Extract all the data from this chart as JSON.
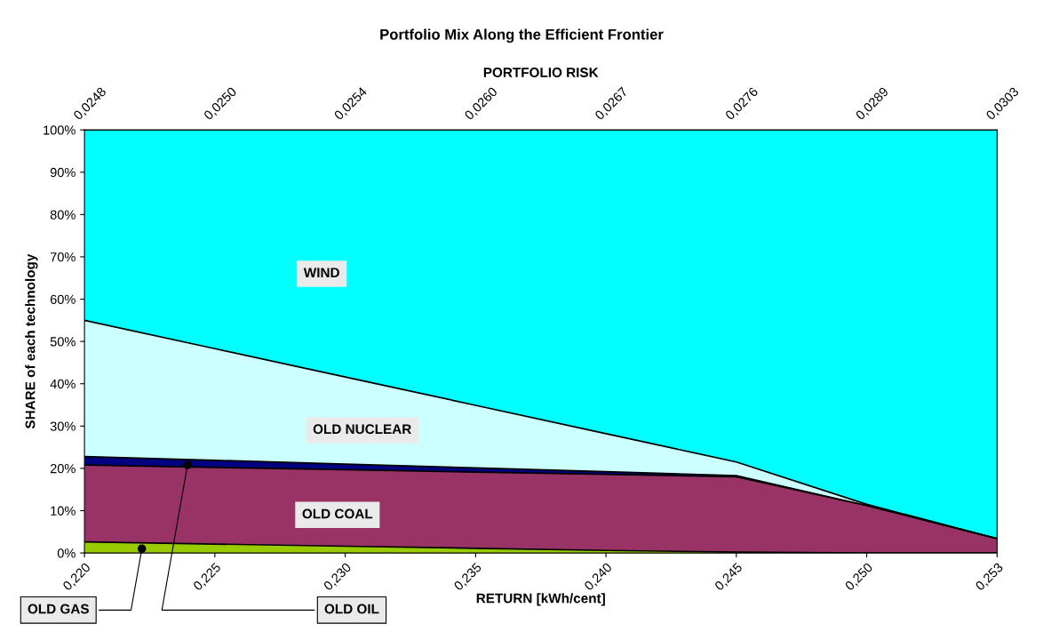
{
  "chart_data": {
    "type": "area",
    "stacked": true,
    "title": "Portfolio Mix Along the Efficient Frontier",
    "xlabel": "RETURN [kWh/cent]",
    "x2label": "PORTFOLIO RISK",
    "ylabel": "SHARE of each technology",
    "categories": [
      "0,220",
      "0,225",
      "0,230",
      "0,235",
      "0,240",
      "0,245",
      "0,250",
      "0,253"
    ],
    "annotations": [
      "0,0248",
      "0,0250",
      "0,0254",
      "0,0260",
      "0,0267",
      "0,0276",
      "0,0289",
      "0,0303"
    ],
    "series": [
      {
        "name": "OLD GAS",
        "color": "#99cc00",
        "values": [
          2.6,
          2.1,
          1.6,
          1.1,
          0.6,
          0.2,
          0,
          0
        ]
      },
      {
        "name": "OLD COAL",
        "color": "#993366",
        "values": [
          18.2,
          18.1,
          18.1,
          18.0,
          18.0,
          17.8,
          11.2,
          3.4
        ]
      },
      {
        "name": "OLD OIL",
        "color": "#000080",
        "values": [
          2.0,
          1.7,
          1.3,
          1.0,
          0.6,
          0.3,
          0,
          0
        ]
      },
      {
        "name": "OLD NUCLEAR",
        "color": "#ccffff",
        "values": [
          32.2,
          26.4,
          20.6,
          14.8,
          9.0,
          3.2,
          0.3,
          0
        ]
      },
      {
        "name": "WIND",
        "color": "#00ffff",
        "values": [
          45.0,
          51.7,
          58.4,
          65.1,
          71.8,
          78.5,
          88.5,
          96.6
        ]
      }
    ],
    "ylim": [
      0,
      100
    ],
    "yticks": [
      {
        "value": 0,
        "label": "0%"
      },
      {
        "value": 10,
        "label": "10%"
      },
      {
        "value": 20,
        "label": "20%"
      },
      {
        "value": 30,
        "label": "30%"
      },
      {
        "value": 40,
        "label": "40%"
      },
      {
        "value": 50,
        "label": "50%"
      },
      {
        "value": 60,
        "label": "60%"
      },
      {
        "value": 70,
        "label": "70%"
      },
      {
        "value": 80,
        "label": "80%"
      },
      {
        "value": 90,
        "label": "90%"
      },
      {
        "value": 100,
        "label": "100%"
      }
    ],
    "grid": false,
    "legend": false
  }
}
